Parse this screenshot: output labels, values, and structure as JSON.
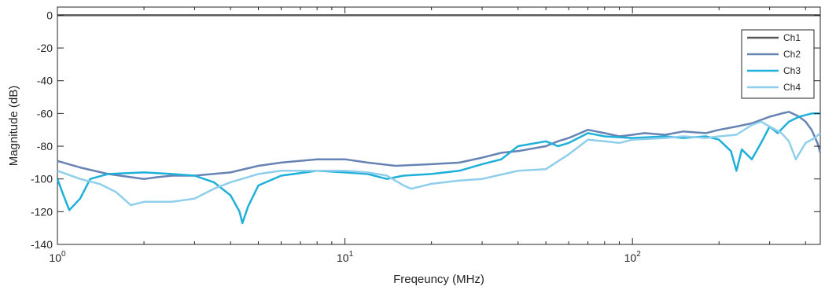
{
  "chart_data": {
    "type": "line",
    "title": "",
    "xlabel": "Freqeuncy (MHz)",
    "ylabel": "Magnitude (dB)",
    "xscale": "log",
    "xlim": [
      1,
      450
    ],
    "ylim": [
      -140,
      5
    ],
    "xticks": [
      1,
      10,
      100
    ],
    "xtick_labels": [
      {
        "base": "10",
        "exp": "0"
      },
      {
        "base": "10",
        "exp": "1"
      },
      {
        "base": "10",
        "exp": "2"
      }
    ],
    "yticks": [
      0,
      -20,
      -40,
      -60,
      -80,
      -100,
      -120,
      -140
    ],
    "ytick_labels": [
      "0",
      "-20",
      "-40",
      "-60",
      "-80",
      "-100",
      "-120",
      "-140"
    ],
    "grid": false,
    "legend_position": "top-right",
    "series": [
      {
        "name": "Ch1",
        "color": "#595959",
        "points": [
          [
            1,
            0
          ],
          [
            450,
            0
          ]
        ]
      },
      {
        "name": "Ch2",
        "color": "#6683b4",
        "points": [
          [
            1,
            -89
          ],
          [
            1.2,
            -93
          ],
          [
            1.5,
            -97
          ],
          [
            2,
            -100
          ],
          [
            2.2,
            -99
          ],
          [
            2.5,
            -98
          ],
          [
            3,
            -98
          ],
          [
            4,
            -96
          ],
          [
            5,
            -92
          ],
          [
            6,
            -90
          ],
          [
            8,
            -88
          ],
          [
            10,
            -88
          ],
          [
            12,
            -90
          ],
          [
            15,
            -92
          ],
          [
            20,
            -91
          ],
          [
            25,
            -90
          ],
          [
            30,
            -87
          ],
          [
            35,
            -84
          ],
          [
            40,
            -83
          ],
          [
            50,
            -80
          ],
          [
            55,
            -77
          ],
          [
            60,
            -75
          ],
          [
            70,
            -70
          ],
          [
            80,
            -72
          ],
          [
            90,
            -74
          ],
          [
            100,
            -73
          ],
          [
            110,
            -72
          ],
          [
            130,
            -73
          ],
          [
            150,
            -71
          ],
          [
            180,
            -72
          ],
          [
            200,
            -70
          ],
          [
            230,
            -68
          ],
          [
            260,
            -66
          ],
          [
            300,
            -62
          ],
          [
            330,
            -60
          ],
          [
            350,
            -59
          ],
          [
            380,
            -62
          ],
          [
            400,
            -65
          ],
          [
            420,
            -70
          ],
          [
            440,
            -78
          ],
          [
            450,
            -84
          ]
        ]
      },
      {
        "name": "Ch3",
        "color": "#1fb0d9",
        "points": [
          [
            1,
            -100
          ],
          [
            1.05,
            -110
          ],
          [
            1.1,
            -119
          ],
          [
            1.2,
            -112
          ],
          [
            1.3,
            -100
          ],
          [
            1.5,
            -97
          ],
          [
            2,
            -96
          ],
          [
            2.5,
            -97
          ],
          [
            3,
            -98
          ],
          [
            3.5,
            -102
          ],
          [
            4,
            -110
          ],
          [
            4.3,
            -120
          ],
          [
            4.4,
            -127
          ],
          [
            4.6,
            -117
          ],
          [
            5,
            -104
          ],
          [
            6,
            -98
          ],
          [
            8,
            -95
          ],
          [
            10,
            -96
          ],
          [
            12,
            -97
          ],
          [
            14,
            -100
          ],
          [
            16,
            -98
          ],
          [
            20,
            -97
          ],
          [
            25,
            -95
          ],
          [
            30,
            -91
          ],
          [
            35,
            -88
          ],
          [
            40,
            -80
          ],
          [
            50,
            -77
          ],
          [
            55,
            -80
          ],
          [
            60,
            -78
          ],
          [
            70,
            -72
          ],
          [
            80,
            -74
          ],
          [
            100,
            -75
          ],
          [
            130,
            -74
          ],
          [
            150,
            -75
          ],
          [
            180,
            -74
          ],
          [
            200,
            -76
          ],
          [
            220,
            -83
          ],
          [
            230,
            -95
          ],
          [
            240,
            -82
          ],
          [
            260,
            -88
          ],
          [
            280,
            -78
          ],
          [
            300,
            -68
          ],
          [
            320,
            -72
          ],
          [
            350,
            -65
          ],
          [
            380,
            -62
          ],
          [
            420,
            -60
          ],
          [
            450,
            -60
          ]
        ]
      },
      {
        "name": "Ch4",
        "color": "#8fcfeb",
        "points": [
          [
            1,
            -95
          ],
          [
            1.2,
            -100
          ],
          [
            1.4,
            -103
          ],
          [
            1.6,
            -108
          ],
          [
            1.8,
            -116
          ],
          [
            2,
            -114
          ],
          [
            2.5,
            -114
          ],
          [
            3,
            -112
          ],
          [
            3.5,
            -106
          ],
          [
            4,
            -102
          ],
          [
            5,
            -97
          ],
          [
            6,
            -95
          ],
          [
            8,
            -95
          ],
          [
            10,
            -95
          ],
          [
            12,
            -96
          ],
          [
            14,
            -98
          ],
          [
            16,
            -104
          ],
          [
            17,
            -106
          ],
          [
            20,
            -103
          ],
          [
            25,
            -101
          ],
          [
            30,
            -100
          ],
          [
            40,
            -95
          ],
          [
            50,
            -94
          ],
          [
            60,
            -85
          ],
          [
            70,
            -76
          ],
          [
            80,
            -77
          ],
          [
            90,
            -78
          ],
          [
            100,
            -76
          ],
          [
            130,
            -75
          ],
          [
            150,
            -74
          ],
          [
            180,
            -75
          ],
          [
            200,
            -74
          ],
          [
            230,
            -73
          ],
          [
            260,
            -67
          ],
          [
            280,
            -65
          ],
          [
            300,
            -68
          ],
          [
            330,
            -72
          ],
          [
            350,
            -77
          ],
          [
            370,
            -88
          ],
          [
            400,
            -78
          ],
          [
            430,
            -75
          ],
          [
            450,
            -72
          ]
        ]
      }
    ]
  }
}
